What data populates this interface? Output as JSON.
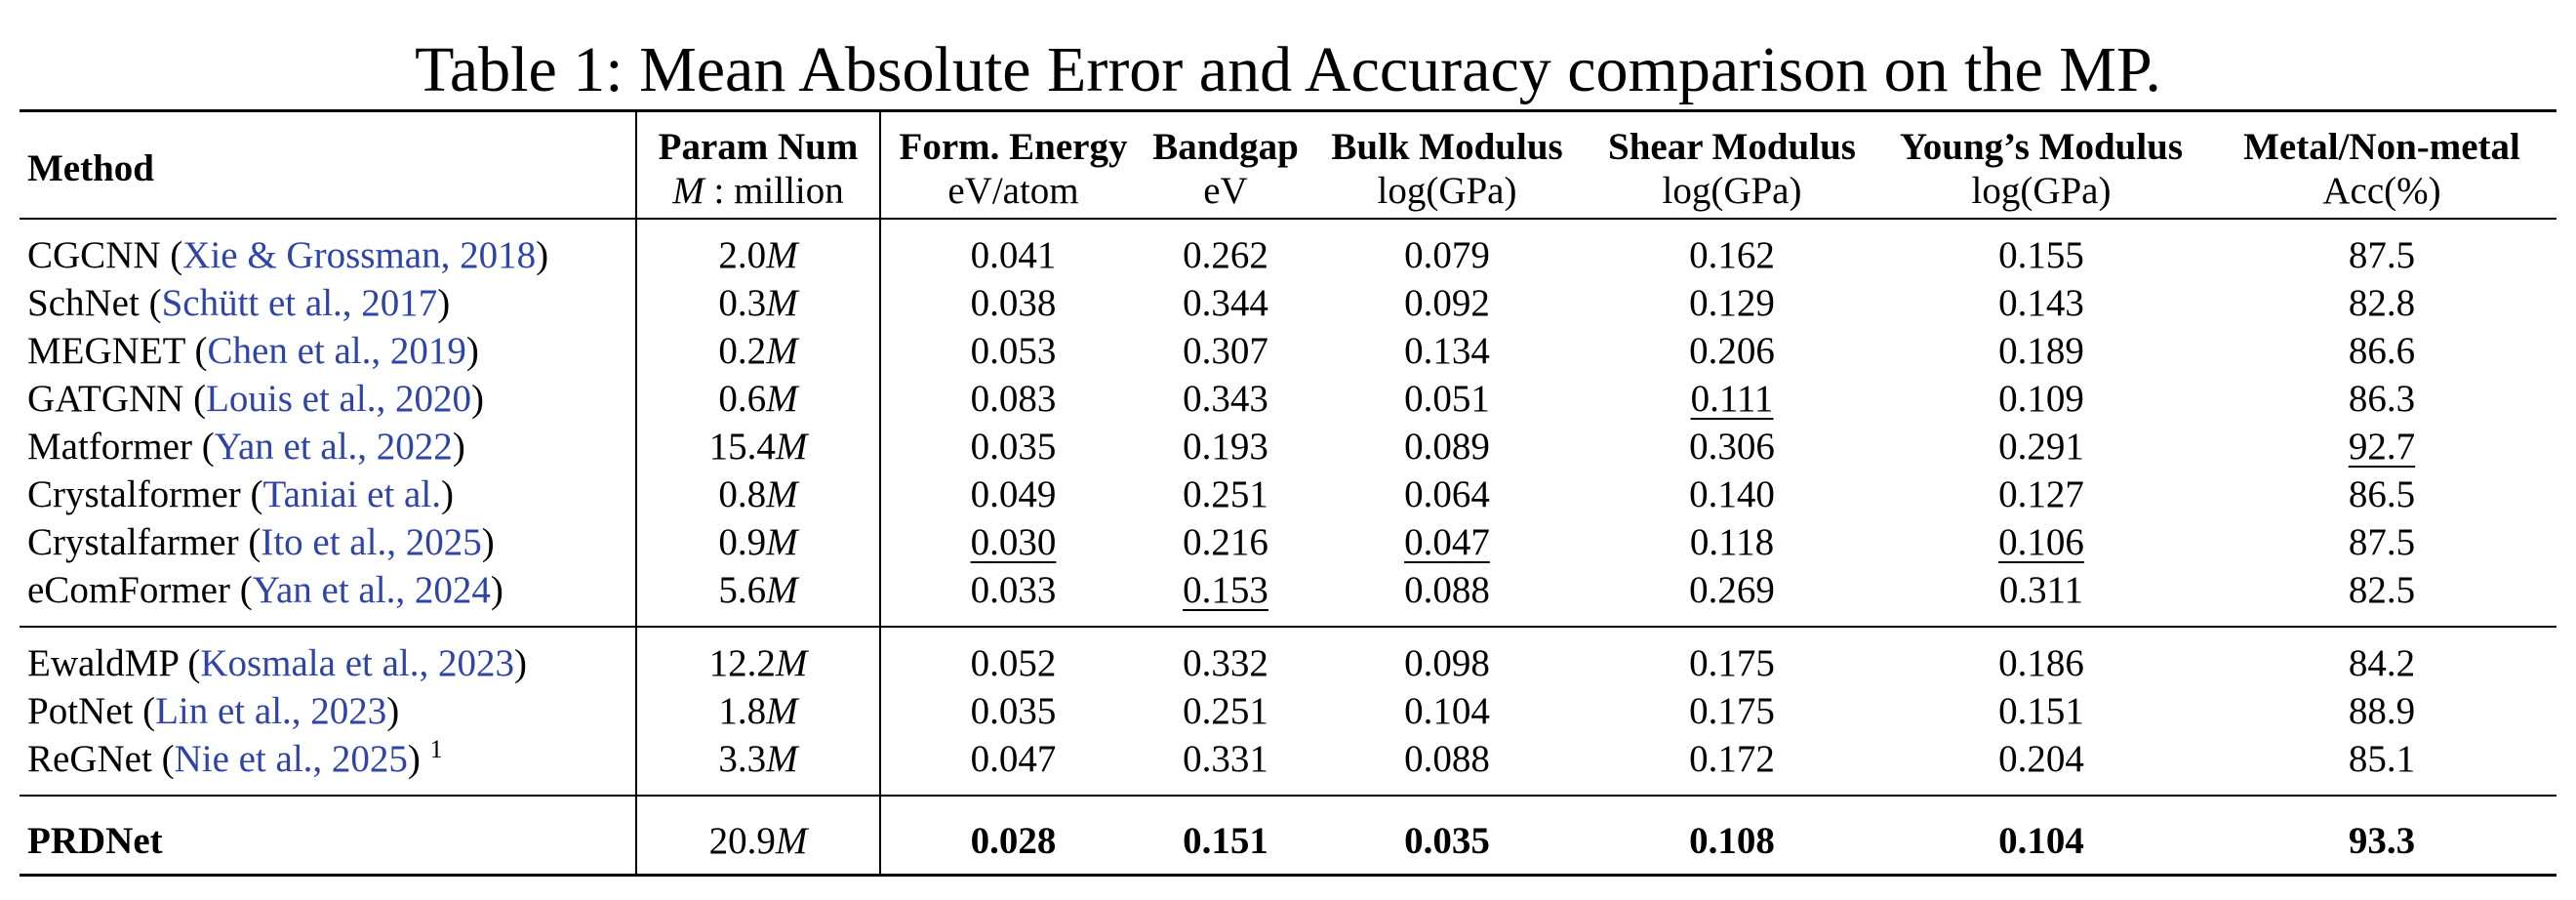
{
  "caption": "Table 1: Mean Absolute Error and Accuracy comparison on the MP.",
  "header": {
    "method": "Method",
    "param_num": "Param Num",
    "param_unit_m": "M",
    "param_unit_rest": " : million",
    "cols": [
      {
        "name": "Form. Energy",
        "unit": "eV/atom"
      },
      {
        "name": "Bandgap",
        "unit": "eV"
      },
      {
        "name": "Bulk Modulus",
        "unit": "log(GPa)"
      },
      {
        "name": "Shear Modulus",
        "unit": "log(GPa)"
      },
      {
        "name": "Young’s Modulus",
        "unit": "log(GPa)"
      },
      {
        "name": "Metal/Non-metal",
        "unit": "Acc(%)"
      }
    ]
  },
  "groups": [
    [
      {
        "method": "CGCNN",
        "cite": "Xie & Grossman, 2018",
        "year_split": true,
        "params": "2.0",
        "vals": [
          "0.041",
          "0.262",
          "0.079",
          "0.162",
          "0.155",
          "87.5"
        ],
        "underline": []
      },
      {
        "method": "SchNet",
        "cite": "Schütt et al., 2017",
        "params": "0.3",
        "vals": [
          "0.038",
          "0.344",
          "0.092",
          "0.129",
          "0.143",
          "82.8"
        ],
        "underline": []
      },
      {
        "method": "MEGNET",
        "cite": "Chen et al., 2019",
        "params": "0.2",
        "vals": [
          "0.053",
          "0.307",
          "0.134",
          "0.206",
          "0.189",
          "86.6"
        ],
        "underline": []
      },
      {
        "method": "GATGNN",
        "cite": "Louis et al., 2020",
        "params": "0.6",
        "vals": [
          "0.083",
          "0.343",
          "0.051",
          "0.111",
          "0.109",
          "86.3"
        ],
        "underline": [
          3
        ]
      },
      {
        "method": "Matformer",
        "cite": "Yan et al., 2022",
        "params": "15.4",
        "vals": [
          "0.035",
          "0.193",
          "0.089",
          "0.306",
          "0.291",
          "92.7"
        ],
        "underline": [
          5
        ]
      },
      {
        "method": "Crystalformer",
        "cite": "Taniai et al.",
        "params": "0.8",
        "vals": [
          "0.049",
          "0.251",
          "0.064",
          "0.140",
          "0.127",
          "86.5"
        ],
        "underline": []
      },
      {
        "method": "Crystalfarmer",
        "cite": "Ito et al., 2025",
        "params": "0.9",
        "vals": [
          "0.030",
          "0.216",
          "0.047",
          "0.118",
          "0.106",
          "87.5"
        ],
        "underline": [
          0,
          2,
          4
        ]
      },
      {
        "method": "eComFormer",
        "cite": "Yan et al., 2024",
        "params": "5.6",
        "vals": [
          "0.033",
          "0.153",
          "0.088",
          "0.269",
          "0.311",
          "82.5"
        ],
        "underline": [
          1
        ]
      }
    ],
    [
      {
        "method": "EwaldMP",
        "cite": "Kosmala et al., 2023",
        "params": "12.2",
        "vals": [
          "0.052",
          "0.332",
          "0.098",
          "0.175",
          "0.186",
          "84.2"
        ],
        "underline": []
      },
      {
        "method": "PotNet",
        "cite": "Lin et al., 2023",
        "params": "1.8",
        "vals": [
          "0.035",
          "0.251",
          "0.104",
          "0.175",
          "0.151",
          "88.9"
        ],
        "underline": []
      },
      {
        "method": "ReGNet",
        "cite": "Nie et al., 2025",
        "footnote": "1",
        "params": "3.3",
        "vals": [
          "0.047",
          "0.331",
          "0.088",
          "0.172",
          "0.204",
          "85.1"
        ],
        "underline": []
      }
    ]
  ],
  "final": {
    "method": "PRDNet",
    "params": "20.9",
    "vals": [
      "0.028",
      "0.151",
      "0.035",
      "0.108",
      "0.104",
      "93.3"
    ]
  },
  "colors": {
    "citation": "#2e44a7"
  }
}
